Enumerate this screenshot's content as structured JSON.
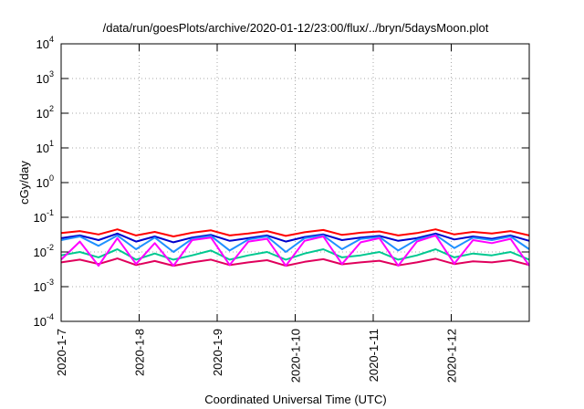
{
  "chart_data": {
    "type": "line",
    "title": "/data/run/goesPlots/archive/2020-01-12/23:00/flux/../bryn/5daysMoon.plot",
    "xlabel": "Coordinated Universal Time (UTC)",
    "ylabel": "cGy/day",
    "yscale": "log",
    "ylim": [
      0.0001,
      10000
    ],
    "y_ticks": [
      {
        "base": "10",
        "exp": "-4"
      },
      {
        "base": "10",
        "exp": "-3"
      },
      {
        "base": "10",
        "exp": "-2"
      },
      {
        "base": "10",
        "exp": "-1"
      },
      {
        "base": "10",
        "exp": "0"
      },
      {
        "base": "10",
        "exp": "1"
      },
      {
        "base": "10",
        "exp": "2"
      },
      {
        "base": "10",
        "exp": "3"
      },
      {
        "base": "10",
        "exp": "4"
      }
    ],
    "xlim": [
      "2020-01-07",
      "2020-01-13"
    ],
    "x_ticks": [
      "2020-1-7",
      "2020-1-8",
      "2020-1-9",
      "2020-1-10",
      "2020-1-11",
      "2020-1-12"
    ],
    "grid": true,
    "legend": "none",
    "series": [
      {
        "color": "#ff0000",
        "values": [
          0.035,
          0.04,
          0.032,
          0.045,
          0.03,
          0.038,
          0.028,
          0.036,
          0.042,
          0.03,
          0.034,
          0.04,
          0.029,
          0.037,
          0.043,
          0.031,
          0.036,
          0.039,
          0.03,
          0.035,
          0.045,
          0.032,
          0.038,
          0.034,
          0.04,
          0.03
        ]
      },
      {
        "color": "#0000cc",
        "values": [
          0.025,
          0.03,
          0.022,
          0.034,
          0.02,
          0.028,
          0.019,
          0.026,
          0.031,
          0.021,
          0.025,
          0.03,
          0.02,
          0.027,
          0.032,
          0.022,
          0.026,
          0.029,
          0.021,
          0.025,
          0.034,
          0.023,
          0.028,
          0.024,
          0.03,
          0.021
        ]
      },
      {
        "color": "#1e90ff",
        "values": [
          0.022,
          0.028,
          0.015,
          0.03,
          0.012,
          0.026,
          0.01,
          0.024,
          0.029,
          0.011,
          0.023,
          0.028,
          0.01,
          0.025,
          0.03,
          0.012,
          0.024,
          0.027,
          0.011,
          0.023,
          0.031,
          0.013,
          0.026,
          0.022,
          0.028,
          0.012
        ]
      },
      {
        "color": "#00c890",
        "values": [
          0.008,
          0.01,
          0.007,
          0.012,
          0.006,
          0.009,
          0.006,
          0.008,
          0.011,
          0.006,
          0.008,
          0.01,
          0.006,
          0.009,
          0.012,
          0.007,
          0.008,
          0.01,
          0.006,
          0.008,
          0.012,
          0.007,
          0.009,
          0.008,
          0.01,
          0.006
        ]
      },
      {
        "color": "#e0005c",
        "values": [
          0.005,
          0.006,
          0.0045,
          0.0065,
          0.0042,
          0.0055,
          0.004,
          0.005,
          0.006,
          0.0042,
          0.005,
          0.0058,
          0.004,
          0.0052,
          0.0062,
          0.0044,
          0.005,
          0.0056,
          0.0041,
          0.005,
          0.0064,
          0.0045,
          0.0054,
          0.005,
          0.0058,
          0.0042
        ]
      },
      {
        "color": "#ff00ff",
        "values": [
          0.006,
          0.02,
          0.004,
          0.025,
          0.0045,
          0.018,
          0.004,
          0.022,
          0.026,
          0.0042,
          0.02,
          0.024,
          0.004,
          0.021,
          0.028,
          0.0045,
          0.019,
          0.025,
          0.004,
          0.02,
          0.03,
          0.0046,
          0.022,
          0.018,
          0.024,
          0.004
        ]
      }
    ]
  }
}
